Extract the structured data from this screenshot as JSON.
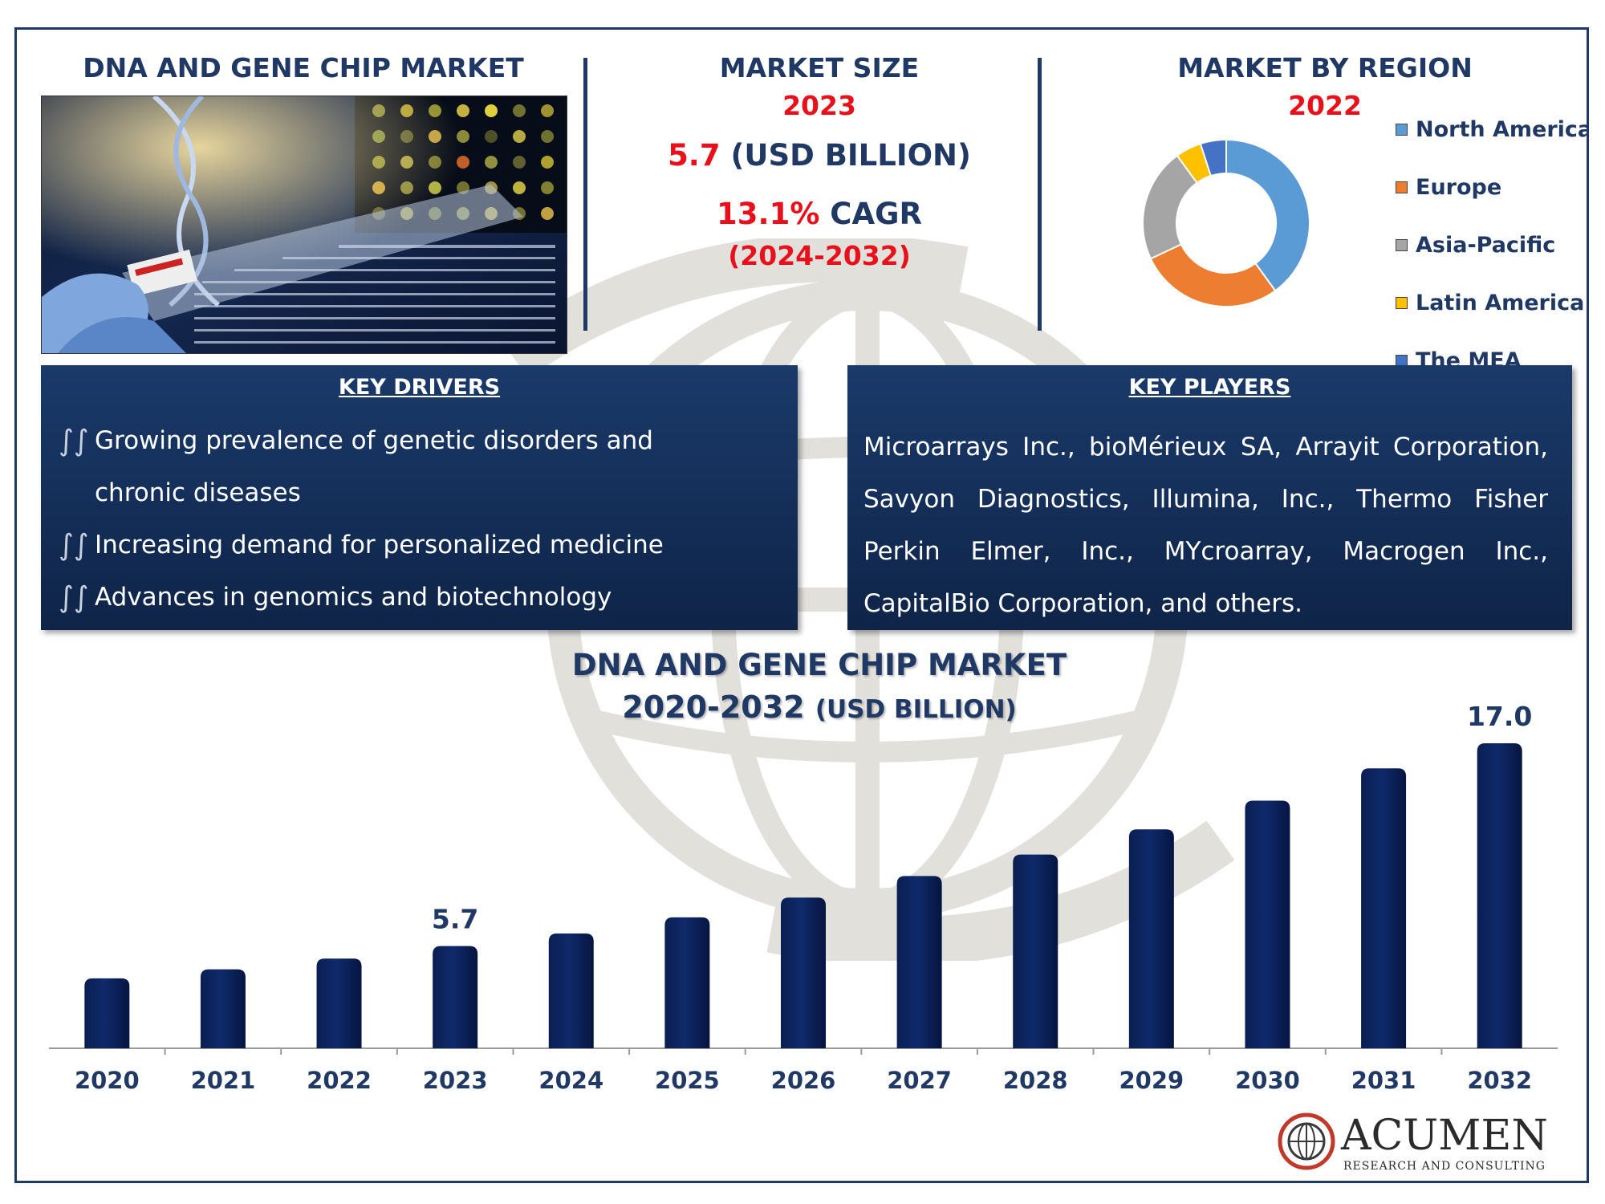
{
  "header": {
    "left_title": "DNA AND GENE CHIP MARKET",
    "market_size_title": "MARKET SIZE",
    "market_size_year": "2023",
    "market_size_value": "5.7",
    "market_size_unit": "(USD BILLION)",
    "cagr_value": "13.1%",
    "cagr_label": "CAGR",
    "cagr_period": "(2024-2032)",
    "region_title": "MARKET BY REGION",
    "region_year": "2022"
  },
  "region_legend": [
    {
      "label": "North America",
      "color": "#5b9bd5"
    },
    {
      "label": "Europe",
      "color": "#ed7d31"
    },
    {
      "label": "Asia-Pacific",
      "color": "#a5a5a5"
    },
    {
      "label": "Latin America",
      "color": "#ffc000"
    },
    {
      "label": "The MEA",
      "color": "#4472c4"
    }
  ],
  "donut_data": {
    "type": "pie",
    "shares": [
      40,
      28,
      22,
      5,
      5
    ],
    "colors": [
      "#5b9bd5",
      "#ed7d31",
      "#a5a5a5",
      "#ffc000",
      "#4472c4"
    ]
  },
  "key_drivers": {
    "title": "KEY DRIVERS",
    "items": [
      "Growing prevalence of genetic disorders and chronic diseases",
      "Increasing demand for personalized medicine",
      "Advances in genomics and biotechnology"
    ]
  },
  "key_players": {
    "title": "KEY PLAYERS",
    "text": "Microarrays Inc., bioMérieux SA, Arrayit Corporation, Savyon Diagnostics, Illumina, Inc., Thermo Fisher Perkin Elmer, Inc., MYcroarray, Macrogen Inc., CapitalBio Corporation, and others."
  },
  "chart_data": {
    "type": "bar",
    "title_line1": "DNA AND GENE CHIP MARKET",
    "title_line2": "2020-2032",
    "title_unit": "(USD BILLION)",
    "categories": [
      "2020",
      "2021",
      "2022",
      "2023",
      "2024",
      "2025",
      "2026",
      "2027",
      "2028",
      "2029",
      "2030",
      "2031",
      "2032"
    ],
    "values": [
      3.9,
      4.4,
      5.0,
      5.7,
      6.4,
      7.3,
      8.4,
      9.6,
      10.8,
      12.2,
      13.8,
      15.6,
      17.0
    ],
    "data_labels": {
      "2023": "5.7",
      "2032": "17.0"
    },
    "bar_color": "#0f2a6b",
    "ylim": [
      0,
      17.0
    ]
  },
  "logo": {
    "name": "ACUMEN",
    "tagline": "RESEARCH AND CONSULTING"
  }
}
